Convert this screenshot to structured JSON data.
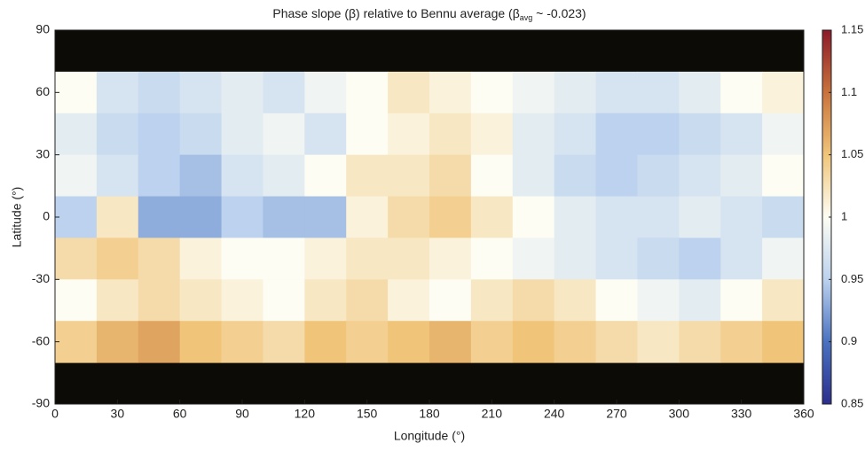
{
  "chart_data": {
    "type": "heatmap",
    "title_parts": [
      "Phase slope (β) relative to Bennu average (β",
      "avg",
      " ~ -0.023)"
    ],
    "xlabel": "Longitude (°)",
    "ylabel": "Latitude (°)",
    "xlim": [
      0,
      360
    ],
    "xticks": [
      0,
      30,
      60,
      90,
      120,
      150,
      180,
      210,
      240,
      270,
      300,
      330,
      360
    ],
    "ylim": [
      -90,
      90
    ],
    "yticks": [
      -90,
      -60,
      -30,
      0,
      30,
      60,
      90
    ],
    "xbins": [
      0,
      20,
      40,
      60,
      80,
      100,
      120,
      140,
      160,
      180,
      200,
      220,
      240,
      260,
      280,
      300,
      320,
      340,
      360
    ],
    "ybins": [
      90,
      70,
      50,
      30,
      10,
      -10,
      -30,
      -50,
      -70,
      -90
    ],
    "z": [
      [
        null,
        null,
        null,
        null,
        null,
        null,
        null,
        null,
        null,
        null,
        null,
        null,
        null,
        null,
        null,
        null,
        null,
        null
      ],
      [
        1.0,
        0.97,
        0.96,
        0.97,
        0.98,
        0.97,
        0.99,
        1.0,
        1.02,
        1.01,
        1.0,
        0.99,
        0.98,
        0.97,
        0.97,
        0.98,
        1.0,
        1.01
      ],
      [
        0.98,
        0.96,
        0.95,
        0.96,
        0.98,
        0.99,
        0.97,
        1.0,
        1.01,
        1.02,
        1.01,
        0.98,
        0.97,
        0.95,
        0.95,
        0.96,
        0.97,
        0.99
      ],
      [
        0.99,
        0.97,
        0.95,
        0.94,
        0.97,
        0.98,
        1.0,
        1.02,
        1.02,
        1.03,
        1.0,
        0.98,
        0.96,
        0.95,
        0.96,
        0.97,
        0.98,
        1.0
      ],
      [
        0.95,
        1.02,
        0.93,
        0.93,
        0.95,
        0.94,
        0.94,
        1.01,
        1.03,
        1.04,
        1.02,
        1.0,
        0.98,
        0.97,
        0.97,
        0.98,
        0.97,
        0.96
      ],
      [
        1.03,
        1.04,
        1.03,
        1.01,
        1.0,
        1.0,
        1.01,
        1.02,
        1.02,
        1.01,
        1.0,
        0.99,
        0.98,
        0.97,
        0.96,
        0.95,
        0.97,
        0.99
      ],
      [
        1.0,
        1.02,
        1.03,
        1.02,
        1.01,
        1.0,
        1.02,
        1.03,
        1.01,
        1.0,
        1.02,
        1.03,
        1.02,
        1.0,
        0.99,
        0.98,
        1.0,
        1.02
      ],
      [
        1.04,
        1.06,
        1.07,
        1.05,
        1.04,
        1.03,
        1.05,
        1.04,
        1.05,
        1.06,
        1.04,
        1.05,
        1.04,
        1.03,
        1.02,
        1.03,
        1.04,
        1.05
      ],
      [
        null,
        null,
        null,
        null,
        null,
        null,
        null,
        null,
        null,
        null,
        null,
        null,
        null,
        null,
        null,
        null,
        null,
        null
      ]
    ],
    "null_color": "#0d0b05",
    "colors": [
      "#2b2e8c",
      "#4a72c0",
      "#bcd2ee",
      "#fdfdf3",
      "#f0c57a",
      "#c9733c",
      "#8b1a2a"
    ],
    "colorbar": {
      "lim": [
        0.85,
        1.15
      ],
      "ticks": [
        0.85,
        0.9,
        0.95,
        1,
        1.05,
        1.1,
        1.15
      ]
    }
  }
}
